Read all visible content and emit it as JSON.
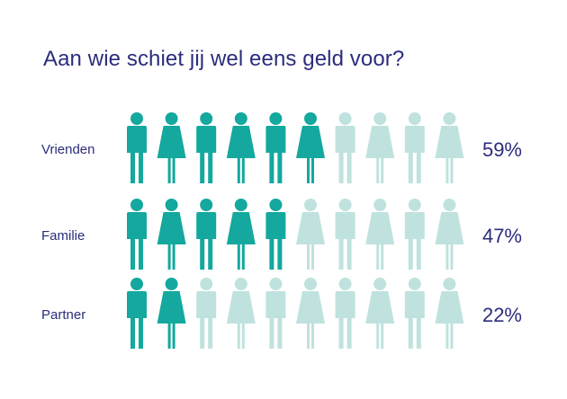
{
  "title": "Aan wie schiet jij wel eens geld voor?",
  "colors": {
    "active": "#14a89e",
    "inactive": "#bfe2de",
    "text": "#2b2d7c"
  },
  "chart_data": {
    "type": "pictogram",
    "title": "Aan wie schiet jij wel eens geld voor?",
    "icons_per_row": 10,
    "icon_pattern": [
      "man-icon",
      "woman-icon"
    ],
    "categories": [
      "Vrienden",
      "Familie",
      "Partner"
    ],
    "values": [
      59,
      47,
      22
    ],
    "value_labels": [
      "59%",
      "47%",
      "22%"
    ],
    "filled_icons": [
      6,
      5,
      2
    ],
    "unit": "%"
  }
}
